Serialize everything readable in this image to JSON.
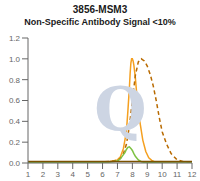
{
  "chart_data": {
    "type": "line",
    "title": "3856-MSM3",
    "subtitle": "Non-Specific Antibody Signal <10%",
    "xlim": [
      1,
      12
    ],
    "ylim": [
      0,
      1.2
    ],
    "xticks": [
      1,
      2,
      3,
      4,
      5,
      6,
      7,
      8,
      9,
      10,
      11,
      12
    ],
    "yticks": [
      {
        "value": 0,
        "label": "0.0"
      },
      {
        "value": 0.2,
        "label": "0.2"
      },
      {
        "value": 0.4,
        "label": "0.4"
      },
      {
        "value": 0.6,
        "label": "0.6"
      },
      {
        "value": 0.8,
        "label": "0.8"
      },
      {
        "value": 1.0,
        "label": "1.0"
      },
      {
        "value": 1.2,
        "label": "1.2"
      }
    ],
    "grid": false,
    "annotations": [
      {
        "text": "Q",
        "x": 7.2,
        "y": 0.52,
        "color": "#cdd5e3"
      }
    ],
    "series": [
      {
        "color": "#F5A020",
        "line_style": "solid",
        "x": [
          1,
          2,
          3,
          4,
          5,
          6,
          6.5,
          7.0,
          7.2,
          7.4,
          7.6,
          7.7,
          7.8,
          7.85,
          7.9,
          7.95,
          8.0,
          8.05,
          8.1,
          8.2,
          8.3,
          8.5,
          8.7,
          8.9,
          9.1,
          9.3,
          9.5,
          9.8,
          10.0,
          10.5,
          11,
          12
        ],
        "values": [
          0.01,
          0.01,
          0.01,
          0.01,
          0.01,
          0.01,
          0.015,
          0.03,
          0.06,
          0.14,
          0.3,
          0.5,
          0.72,
          0.86,
          0.96,
          1.0,
          1.0,
          0.98,
          0.94,
          0.82,
          0.65,
          0.4,
          0.22,
          0.11,
          0.05,
          0.025,
          0.01,
          0.005,
          0.003,
          0.002,
          0.001,
          0.001
        ]
      },
      {
        "color": "#B86A00",
        "line_style": "dashed",
        "x": [
          1,
          2,
          3,
          4,
          5,
          6,
          6.5,
          7.0,
          7.2,
          7.4,
          7.6,
          7.8,
          8.0,
          8.2,
          8.4,
          8.6,
          8.8,
          9.0,
          9.2,
          9.4,
          9.6,
          9.8,
          10.0,
          10.3,
          10.6,
          11,
          11.5,
          12
        ],
        "values": [
          0.01,
          0.01,
          0.01,
          0.01,
          0.01,
          0.01,
          0.015,
          0.025,
          0.045,
          0.09,
          0.18,
          0.35,
          0.6,
          0.84,
          0.97,
          1.0,
          0.98,
          0.93,
          0.85,
          0.74,
          0.6,
          0.44,
          0.3,
          0.18,
          0.09,
          0.03,
          0.01,
          0.005
        ]
      },
      {
        "color": "#7DC242",
        "line_style": "solid",
        "x": [
          1,
          2,
          3,
          4,
          5,
          6,
          6.5,
          7.0,
          7.2,
          7.4,
          7.5,
          7.6,
          7.7,
          7.8,
          7.9,
          8.0,
          8.1,
          8.2,
          8.4,
          8.6,
          8.8,
          9.0,
          9.5,
          10,
          11,
          12
        ],
        "values": [
          0.005,
          0.005,
          0.005,
          0.005,
          0.005,
          0.007,
          0.01,
          0.02,
          0.04,
          0.08,
          0.1,
          0.13,
          0.15,
          0.155,
          0.14,
          0.12,
          0.09,
          0.065,
          0.03,
          0.012,
          0.005,
          0.003,
          0.002,
          0.001,
          0.001,
          0.001
        ]
      },
      {
        "color": "#7B5200",
        "line_style": "solid",
        "x": [
          1,
          2,
          3,
          4,
          5,
          6,
          7,
          8,
          9,
          10,
          11,
          12
        ],
        "values": [
          0.015,
          0.015,
          0.015,
          0.015,
          0.015,
          0.015,
          0.015,
          0.015,
          0.015,
          0.015,
          0.015,
          0.015
        ]
      }
    ]
  }
}
